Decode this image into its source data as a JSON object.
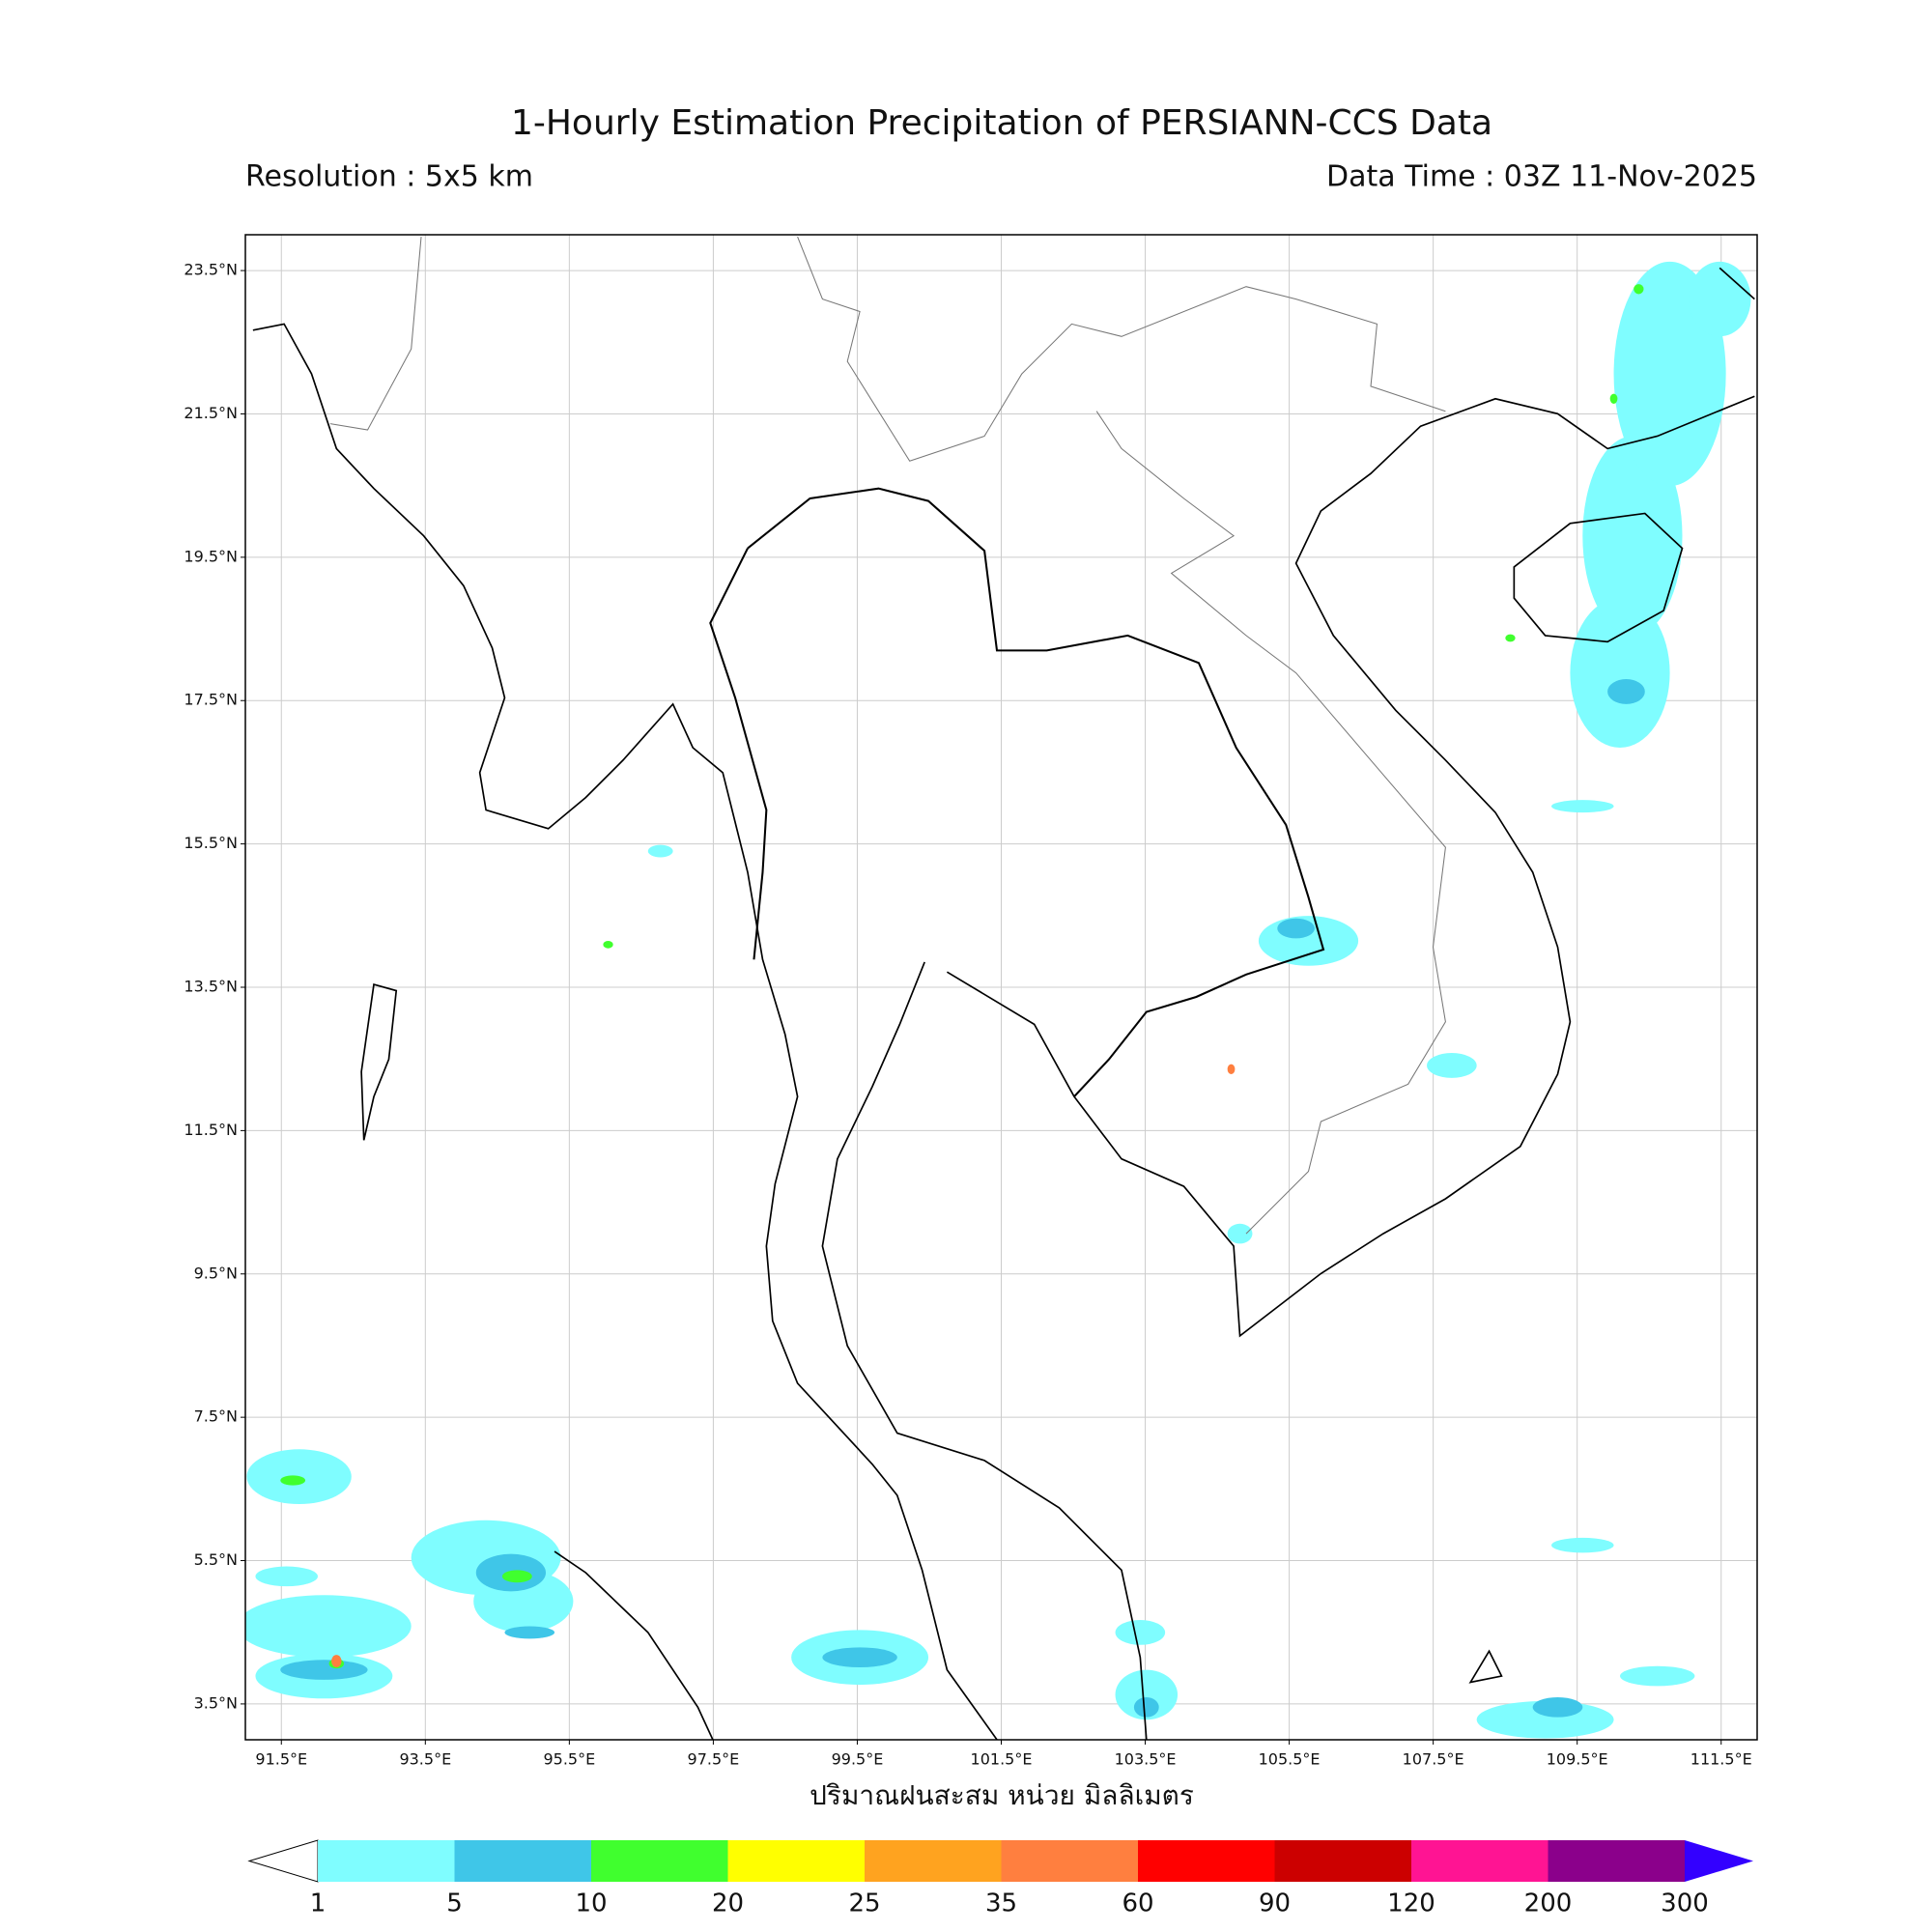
{
  "title": "1-Hourly Estimation Precipitation of PERSIANN-CCS Data",
  "subtitle_left": "Resolution : 5x5 km",
  "subtitle_right": "Data Time : 03Z 11-Nov-2025",
  "xlabel": "ปริมาณฝนสะสม หน่วย มิลลิเมตร",
  "map": {
    "xlim": [
      91,
      112
    ],
    "ylim": [
      3,
      24
    ],
    "grid": true,
    "xticks": [
      {
        "value": 91.5,
        "label": "91.5°E"
      },
      {
        "value": 93.5,
        "label": "93.5°E"
      },
      {
        "value": 95.5,
        "label": "95.5°E"
      },
      {
        "value": 97.5,
        "label": "97.5°E"
      },
      {
        "value": 99.5,
        "label": "99.5°E"
      },
      {
        "value": 101.5,
        "label": "101.5°E"
      },
      {
        "value": 103.5,
        "label": "103.5°E"
      },
      {
        "value": 105.5,
        "label": "105.5°E"
      },
      {
        "value": 107.5,
        "label": "107.5°E"
      },
      {
        "value": 109.5,
        "label": "109.5°E"
      },
      {
        "value": 111.5,
        "label": "111.5°E"
      }
    ],
    "yticks": [
      {
        "value": 3.5,
        "label": "3.5°N"
      },
      {
        "value": 5.5,
        "label": "5.5°N"
      },
      {
        "value": 7.5,
        "label": "7.5°N"
      },
      {
        "value": 9.5,
        "label": "9.5°N"
      },
      {
        "value": 11.5,
        "label": "11.5°N"
      },
      {
        "value": 13.5,
        "label": "13.5°N"
      },
      {
        "value": 15.5,
        "label": "15.5°N"
      },
      {
        "value": 17.5,
        "label": "17.5°N"
      },
      {
        "value": 19.5,
        "label": "19.5°N"
      },
      {
        "value": 21.5,
        "label": "21.5°N"
      },
      {
        "value": 23.5,
        "label": "23.5°N"
      }
    ]
  },
  "colorbar": {
    "levels": [
      1,
      5,
      10,
      20,
      25,
      35,
      60,
      90,
      120,
      200,
      300
    ],
    "colors": [
      "#7ffdff",
      "#3fc6e8",
      "#40ff2e",
      "#ffff00",
      "#ffa31f",
      "#ff7f3f",
      "#ff0000",
      "#cc0000",
      "#ff1493",
      "#8b008b"
    ],
    "under_color": "#ffffff",
    "over_color": "#3300ff"
  }
}
